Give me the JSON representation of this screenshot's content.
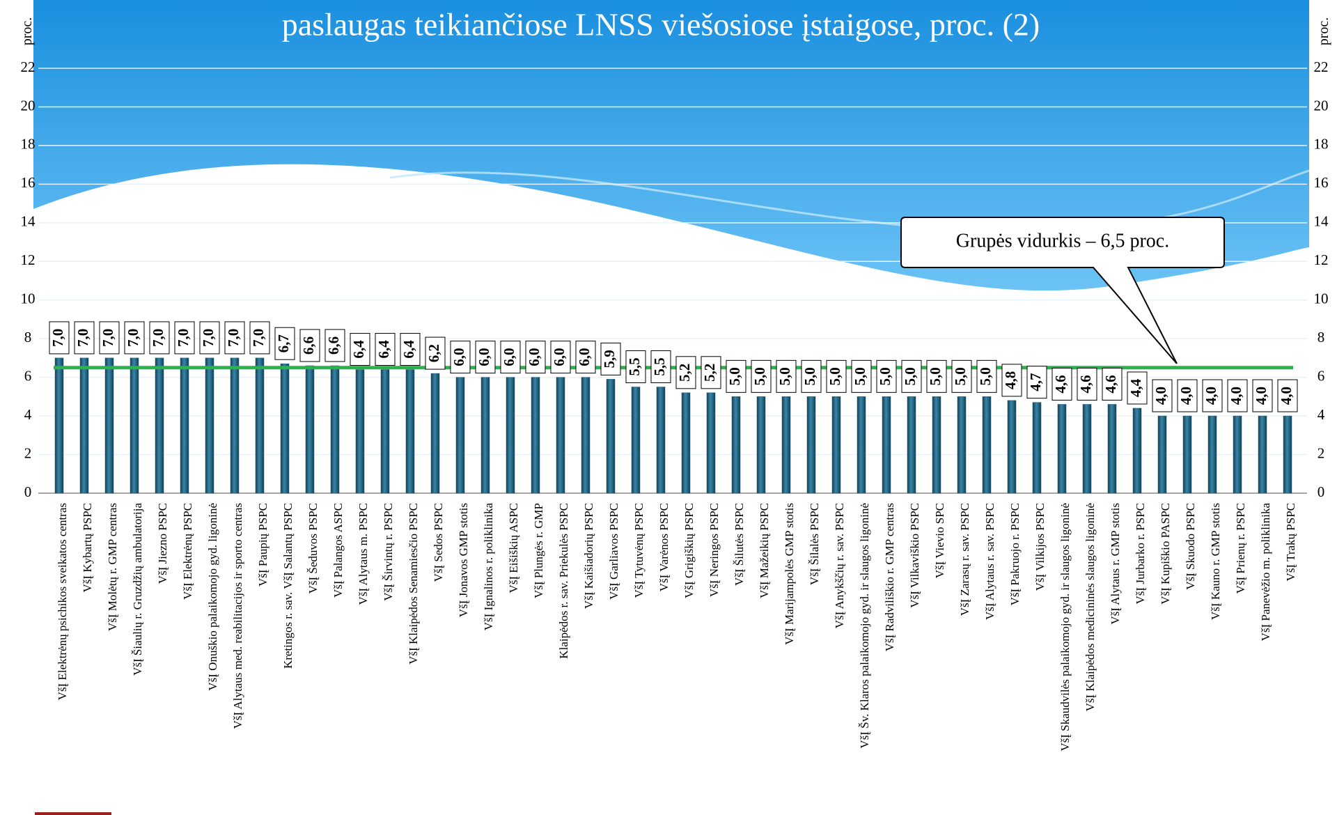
{
  "chart_data": {
    "type": "bar",
    "title": "paslaugas teikiančiose LNSS viešosiose įstaigose, proc. (2)",
    "y_label": "proc.",
    "y2_label": "proc.",
    "categories": [
      "VšĮ Elektrėnų psichikos sveikatos centras",
      "VšĮ Kybartų PSPC",
      "VšĮ Molėtų r. GMP centras",
      "VšĮ Šiaulių r. Gruzdžių ambulatorija",
      "VšĮ Jiezno PSPC",
      "VšĮ Elektrėnų PSPC",
      "VšĮ Onuškio palaikomojo gyd. ligoninė",
      "VšĮ Alytaus med. reabilitacijos ir sporto centras",
      "VšĮ Paupių PSPC",
      "Kretingos r. sav. VšĮ Salantų PSPC",
      "VšĮ Šeduvos PSPC",
      "VšĮ Palangos ASPC",
      "VšĮ Alytaus m. PSPC",
      "VšĮ Širvintų r. PSPC",
      "VšĮ Klaipėdos Senamiesčio PSPC",
      "VšĮ Sedos PSPC",
      "VšĮ Jonavos GMP stotis",
      "VšĮ Ignalinos r. poliklinika",
      "VšĮ Eišiškių ASPC",
      "VšĮ Plungės r. GMP",
      "Klaipėdos r. sav. Priekulės PSPC",
      "VšĮ Kaišiadorių PSPC",
      "VšĮ Garliavos PSPC",
      "VšĮ Tytuvėnų PSPC",
      "VšĮ Varėnos PSPC",
      "VšĮ Grigiškių PSPC",
      "VšĮ Neringos PSPC",
      "VšĮ Šilutės PSPC",
      "VšĮ Mažeikių PSPC",
      "VšĮ Marijampolės GMP stotis",
      "VšĮ Šilalės PSPC",
      "VšĮ Anykščių r. sav. PSPC",
      "VšĮ Šv. Klaros palaikomojo gyd. ir slaugos ligoninė",
      "VšĮ Radviliškio r. GMP centras",
      "VšĮ Vilkaviškio PSPC",
      "VšĮ Vievio SPC",
      "VšĮ Zarasų r. sav. PSPC",
      "VšĮ Alytaus r. sav. PSPC",
      "VšĮ Pakruojo r. PSPC",
      "VšĮ Vilkijos PSPC",
      "VšĮ Skaudvilės palaikomojo gyd. ir slaugos ligoninė",
      "VšĮ Klaipėdos medicininės slaugos ligoninė",
      "VšĮ Alytaus r. GMP stotis",
      "VšĮ Jurbarko r. PSPC",
      "VšĮ Kupiškio PASPC",
      "VšĮ Skuodo PSPC",
      "VšĮ Kauno r. GMP stotis",
      "VšĮ Prienų r. PSPC",
      "VšĮ Panevėžio m. poliklinika",
      "VšĮ Trakų PSPC"
    ],
    "values": [
      7.0,
      7.0,
      7.0,
      7.0,
      7.0,
      7.0,
      7.0,
      7.0,
      7.0,
      6.7,
      6.6,
      6.6,
      6.4,
      6.4,
      6.4,
      6.2,
      6.0,
      6.0,
      6.0,
      6.0,
      6.0,
      6.0,
      5.9,
      5.5,
      5.5,
      5.2,
      5.2,
      5.0,
      5.0,
      5.0,
      5.0,
      5.0,
      5.0,
      5.0,
      5.0,
      5.0,
      5.0,
      5.0,
      4.8,
      4.7,
      4.6,
      4.6,
      4.6,
      4.4,
      4.0,
      4.0,
      4.0,
      4.0,
      4.0,
      4.0
    ],
    "value_labels": [
      "7,0",
      "7,0",
      "7,0",
      "7,0",
      "7,0",
      "7,0",
      "7,0",
      "7,0",
      "7,0",
      "6,7",
      "6,6",
      "6,6",
      "6,4",
      "6,4",
      "6,4",
      "6,2",
      "6,0",
      "6,0",
      "6,0",
      "6,0",
      "6,0",
      "6,0",
      "5,9",
      "5,5",
      "5,5",
      "5,2",
      "5,2",
      "5,0",
      "5,0",
      "5,0",
      "5,0",
      "5,0",
      "5,0",
      "5,0",
      "5,0",
      "5,0",
      "5,0",
      "5,0",
      "4,8",
      "4,7",
      "4,6",
      "4,6",
      "4,6",
      "4,4",
      "4,0",
      "4,0",
      "4,0",
      "4,0",
      "4,0",
      "4,0"
    ],
    "color": "#1d5c78",
    "average": 6.5,
    "average_color": "#2bb24c",
    "annotation": "Grupės vidurkis – 6,5 proc.",
    "ylim": [
      0,
      22
    ],
    "yticks": [
      0,
      2,
      4,
      6,
      8,
      10,
      12,
      14,
      16,
      18,
      20,
      22
    ],
    "grid": true
  }
}
